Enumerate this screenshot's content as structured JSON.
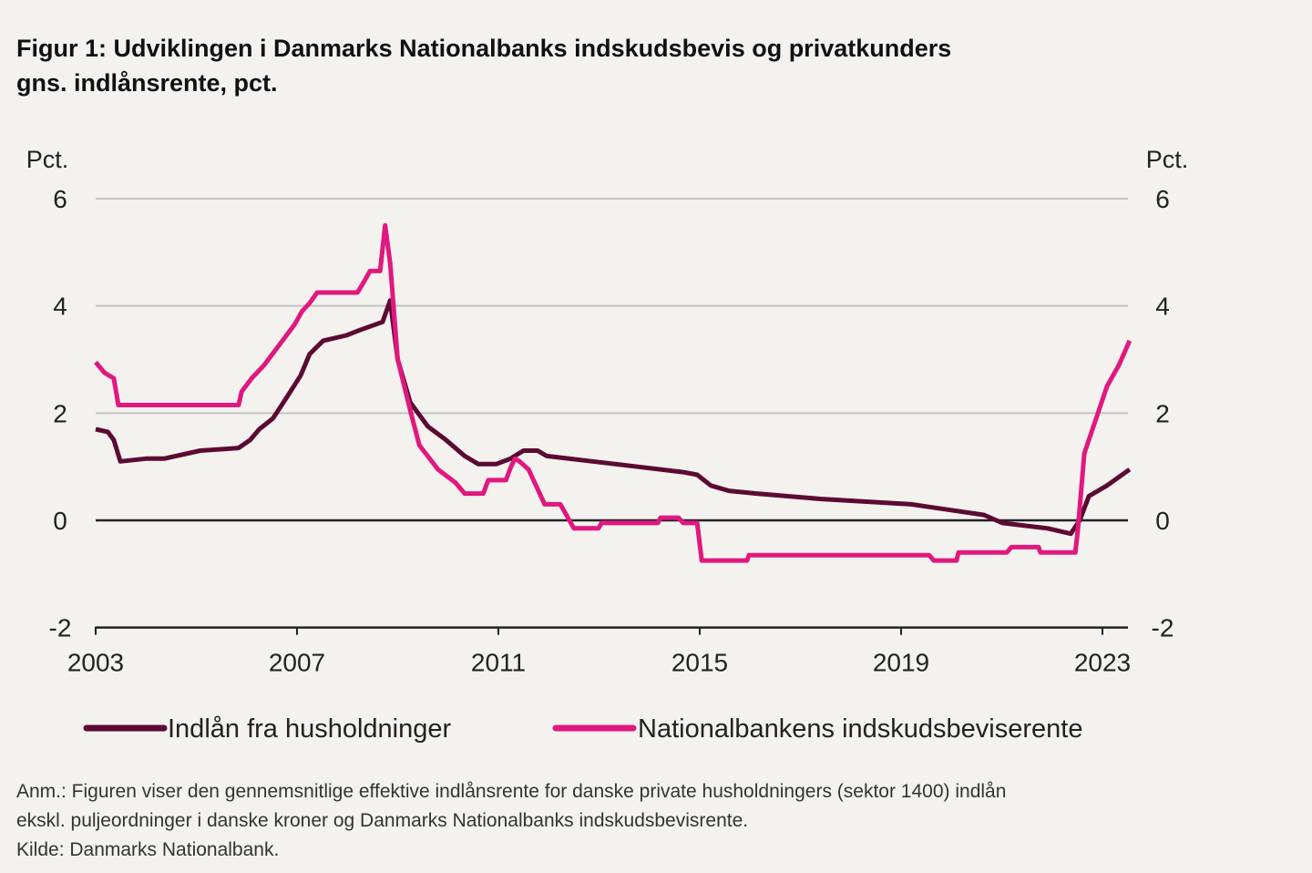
{
  "title_line1": "Figur 1: Udviklingen i Danmarks Nationalbanks indskudsbevis og privatkunders",
  "title_line2": "gns. indlånsrente, pct.",
  "notes": [
    "Anm.: Figuren viser den gennemsnitlige effektive indlånsrente for danske private husholdningers (sektor 1400) indlån",
    "ekskl. puljeordninger i danske kroner og Danmarks Nationalbanks indskudsbevisrente.",
    "Kilde: Danmarks Nationalbank."
  ],
  "chart_data": {
    "type": "line",
    "ylabel_left": "Pct.",
    "ylabel_right": "Pct.",
    "xlim": [
      2003,
      2023.6
    ],
    "ylim": [
      -2,
      6
    ],
    "yticks": [
      6,
      4,
      2,
      0,
      -2
    ],
    "xticks": [
      2003,
      2007,
      2011,
      2015,
      2019,
      2023
    ],
    "grid": true,
    "legend": "bottom",
    "series": [
      {
        "name": "Indlån fra husholdninger",
        "color": "#5c0a33",
        "points": [
          [
            2003.0,
            1.7
          ],
          [
            2003.24,
            1.65
          ],
          [
            2003.36,
            1.5
          ],
          [
            2003.49,
            1.1
          ],
          [
            2004.0,
            1.15
          ],
          [
            2004.36,
            1.15
          ],
          [
            2005.08,
            1.3
          ],
          [
            2005.84,
            1.35
          ],
          [
            2006.07,
            1.5
          ],
          [
            2006.25,
            1.7
          ],
          [
            2006.52,
            1.9
          ],
          [
            2006.8,
            2.3
          ],
          [
            2007.07,
            2.7
          ],
          [
            2007.25,
            3.1
          ],
          [
            2007.52,
            3.35
          ],
          [
            2007.98,
            3.45
          ],
          [
            2008.25,
            3.55
          ],
          [
            2008.7,
            3.7
          ],
          [
            2008.85,
            4.1
          ],
          [
            2009.0,
            3.0
          ],
          [
            2009.25,
            2.2
          ],
          [
            2009.6,
            1.75
          ],
          [
            2009.96,
            1.5
          ],
          [
            2010.33,
            1.2
          ],
          [
            2010.6,
            1.05
          ],
          [
            2010.96,
            1.05
          ],
          [
            2011.24,
            1.15
          ],
          [
            2011.5,
            1.3
          ],
          [
            2011.78,
            1.3
          ],
          [
            2011.96,
            1.2
          ],
          [
            2012.87,
            1.1
          ],
          [
            2013.77,
            1.0
          ],
          [
            2014.67,
            0.9
          ],
          [
            2014.95,
            0.85
          ],
          [
            2015.22,
            0.65
          ],
          [
            2015.58,
            0.55
          ],
          [
            2016.13,
            0.5
          ],
          [
            2017.39,
            0.4
          ],
          [
            2019.2,
            0.3
          ],
          [
            2019.92,
            0.2
          ],
          [
            2020.65,
            0.1
          ],
          [
            2021.01,
            -0.05
          ],
          [
            2021.91,
            -0.15
          ],
          [
            2022.37,
            -0.25
          ],
          [
            2022.55,
            0.0
          ],
          [
            2022.73,
            0.45
          ],
          [
            2023.09,
            0.65
          ],
          [
            2023.54,
            0.95
          ]
        ]
      },
      {
        "name": "Nationalbankens indskudsbeviserente",
        "color": "#e0187f",
        "points": [
          [
            2003.0,
            2.95
          ],
          [
            2003.18,
            2.75
          ],
          [
            2003.36,
            2.65
          ],
          [
            2003.45,
            2.15
          ],
          [
            2005.84,
            2.15
          ],
          [
            2005.9,
            2.4
          ],
          [
            2006.1,
            2.65
          ],
          [
            2006.35,
            2.9
          ],
          [
            2006.55,
            3.15
          ],
          [
            2006.75,
            3.4
          ],
          [
            2006.95,
            3.65
          ],
          [
            2007.1,
            3.9
          ],
          [
            2007.25,
            4.05
          ],
          [
            2007.4,
            4.25
          ],
          [
            2008.2,
            4.25
          ],
          [
            2008.3,
            4.4
          ],
          [
            2008.45,
            4.65
          ],
          [
            2008.65,
            4.65
          ],
          [
            2008.75,
            5.5
          ],
          [
            2008.85,
            4.8
          ],
          [
            2009.0,
            3.0
          ],
          [
            2009.25,
            2.05
          ],
          [
            2009.43,
            1.4
          ],
          [
            2009.8,
            0.95
          ],
          [
            2010.15,
            0.7
          ],
          [
            2010.33,
            0.5
          ],
          [
            2010.7,
            0.5
          ],
          [
            2010.8,
            0.75
          ],
          [
            2011.15,
            0.75
          ],
          [
            2011.25,
            1.0
          ],
          [
            2011.33,
            1.15
          ],
          [
            2011.42,
            1.1
          ],
          [
            2011.6,
            0.95
          ],
          [
            2011.92,
            0.3
          ],
          [
            2012.23,
            0.3
          ],
          [
            2012.5,
            -0.15
          ],
          [
            2012.99,
            -0.15
          ],
          [
            2013.05,
            -0.05
          ],
          [
            2014.17,
            -0.05
          ],
          [
            2014.22,
            0.05
          ],
          [
            2014.58,
            0.05
          ],
          [
            2014.67,
            -0.05
          ],
          [
            2014.95,
            -0.05
          ],
          [
            2015.04,
            -0.75
          ],
          [
            2015.94,
            -0.75
          ],
          [
            2015.98,
            -0.65
          ],
          [
            2019.56,
            -0.65
          ],
          [
            2019.65,
            -0.75
          ],
          [
            2020.1,
            -0.75
          ],
          [
            2020.14,
            -0.6
          ],
          [
            2021.1,
            -0.6
          ],
          [
            2021.19,
            -0.5
          ],
          [
            2021.73,
            -0.5
          ],
          [
            2021.77,
            -0.6
          ],
          [
            2022.46,
            -0.6
          ],
          [
            2022.51,
            -0.2
          ],
          [
            2022.64,
            1.25
          ],
          [
            2022.82,
            1.75
          ],
          [
            2023.09,
            2.5
          ],
          [
            2023.33,
            2.9
          ],
          [
            2023.54,
            3.35
          ]
        ]
      }
    ]
  }
}
